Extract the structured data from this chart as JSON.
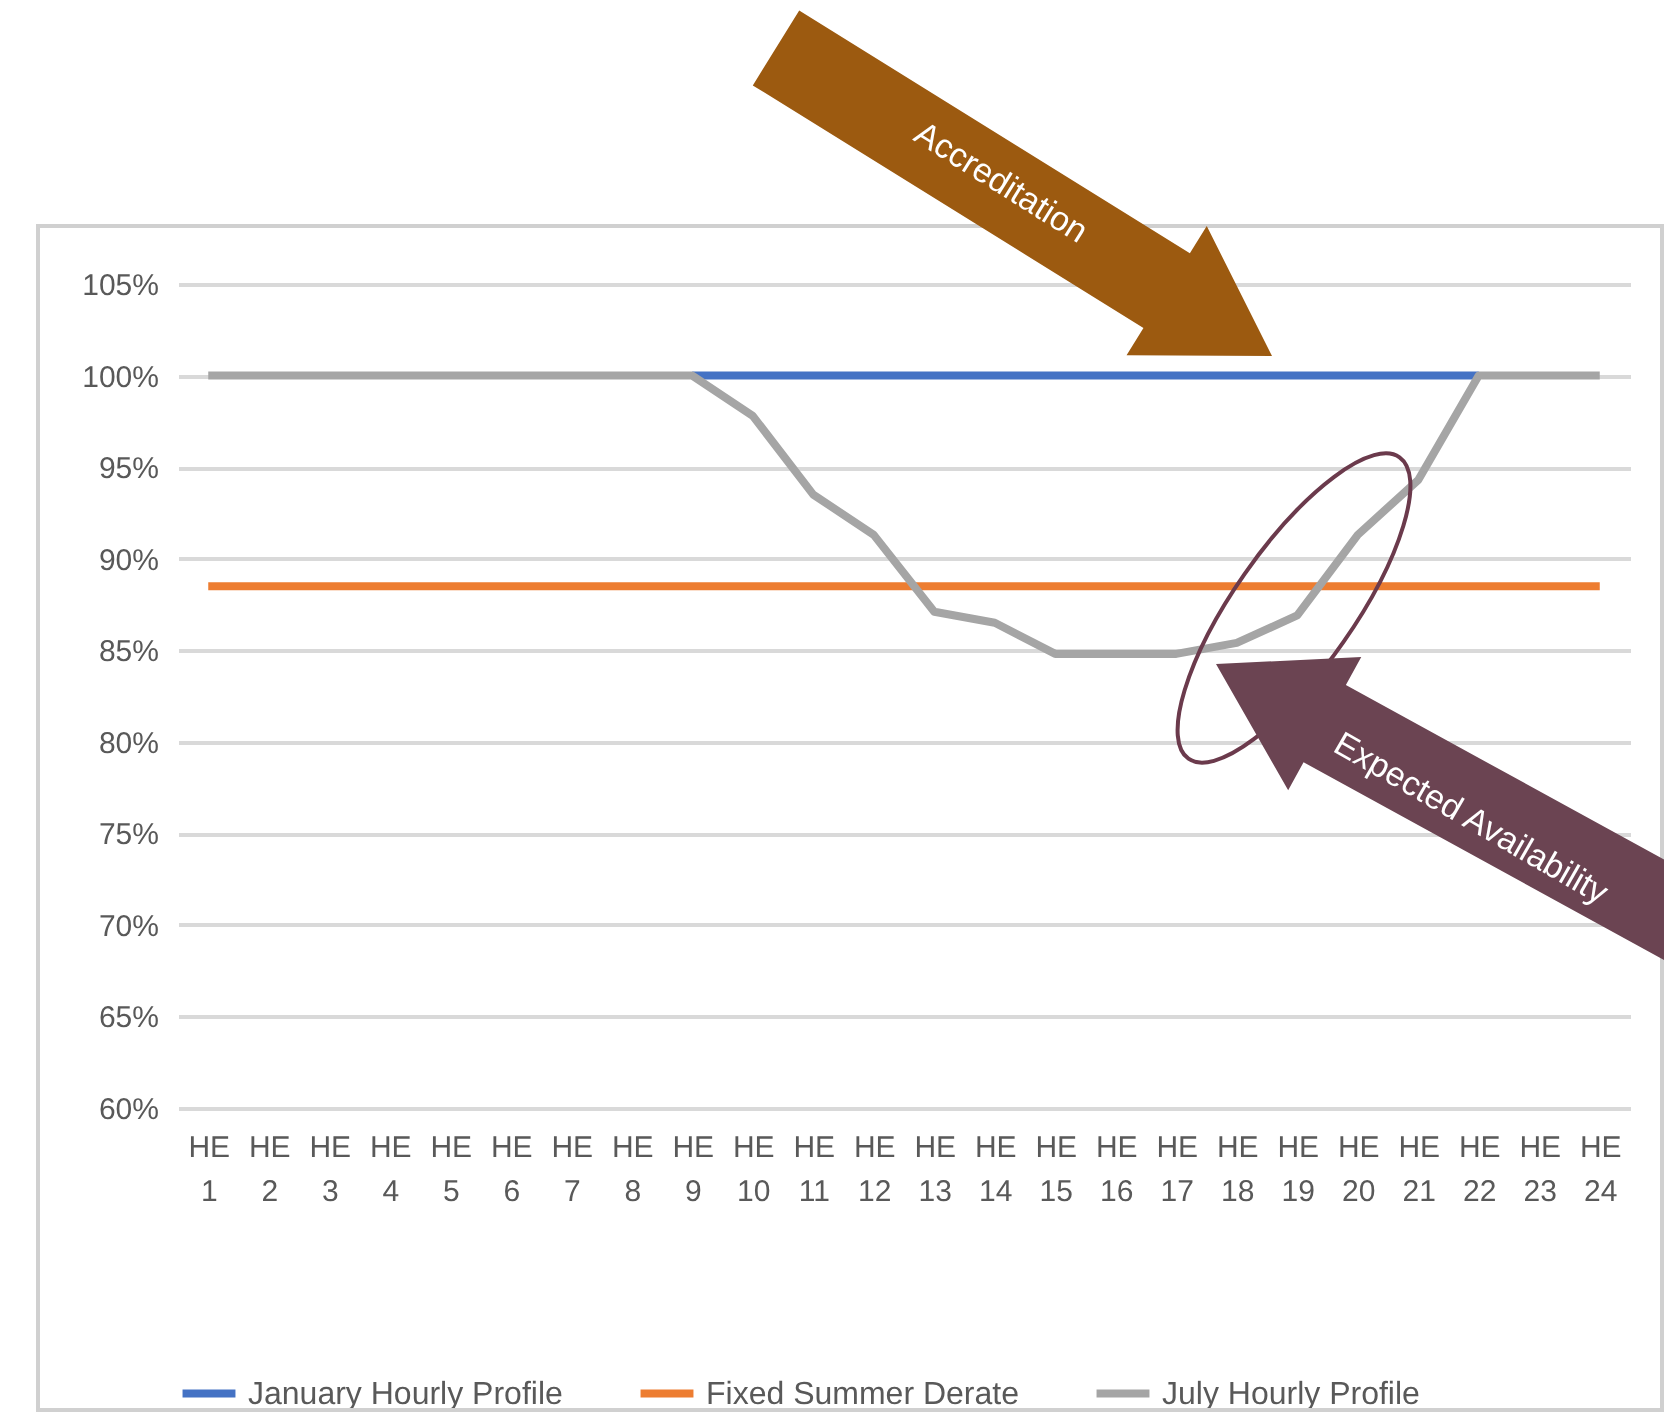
{
  "chart_data": {
    "type": "line",
    "categories": [
      "HE 1",
      "HE 2",
      "HE 3",
      "HE 4",
      "HE 5",
      "HE 6",
      "HE 7",
      "HE 8",
      "HE 9",
      "HE 10",
      "HE 11",
      "HE 12",
      "HE 13",
      "HE 14",
      "HE 15",
      "HE 16",
      "HE 17",
      "HE 18",
      "HE 19",
      "HE 20",
      "HE 21",
      "HE 22",
      "HE 23",
      "HE 24"
    ],
    "series": [
      {
        "name": "January Hourly Profile",
        "color": "#4472c4",
        "values": [
          null,
          null,
          null,
          null,
          null,
          null,
          null,
          null,
          100,
          100,
          100,
          100,
          100,
          100,
          100,
          100,
          100,
          100,
          100,
          100,
          100,
          100,
          null,
          null
        ]
      },
      {
        "name": "Fixed Summer Derate",
        "color": "#ed7d31",
        "values": [
          88.5,
          88.5,
          88.5,
          88.5,
          88.5,
          88.5,
          88.5,
          88.5,
          88.5,
          88.5,
          88.5,
          88.5,
          88.5,
          88.5,
          88.5,
          88.5,
          88.5,
          88.5,
          88.5,
          88.5,
          88.5,
          88.5,
          88.5,
          88.5
        ]
      },
      {
        "name": "July Hourly Profile",
        "color": "#a5a5a5",
        "values": [
          100,
          100,
          100,
          100,
          100,
          100,
          100,
          100,
          100,
          97.8,
          93.5,
          91.3,
          87.1,
          86.5,
          84.8,
          84.8,
          84.8,
          85.4,
          86.9,
          91.3,
          94.3,
          100,
          100,
          100
        ]
      }
    ],
    "ylim": [
      60,
      105
    ],
    "yticks": [
      {
        "value": 60,
        "label": "60%"
      },
      {
        "value": 65,
        "label": "65%"
      },
      {
        "value": 70,
        "label": "70%"
      },
      {
        "value": 75,
        "label": "75%"
      },
      {
        "value": 80,
        "label": "80%"
      },
      {
        "value": 85,
        "label": "85%"
      },
      {
        "value": 90,
        "label": "90%"
      },
      {
        "value": 95,
        "label": "95%"
      },
      {
        "value": 100,
        "label": "100%"
      },
      {
        "value": 105,
        "label": "105%"
      }
    ],
    "grid": "y",
    "legend": "bottom",
    "annotations": [
      "Accreditation",
      "Expected Availability"
    ]
  }
}
